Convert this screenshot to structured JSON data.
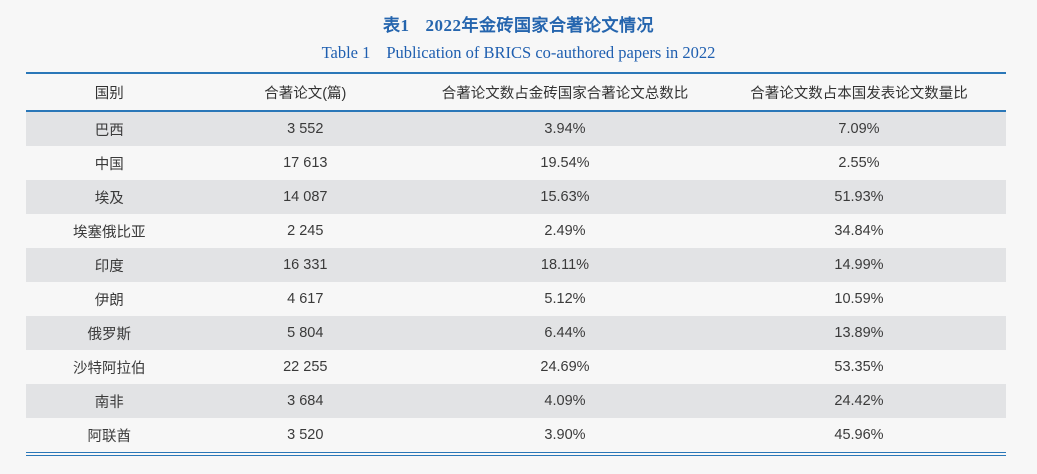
{
  "caption": {
    "zh_label": "表1",
    "zh_title": "2022年金砖国家合著论文情况",
    "en_label": "Table 1",
    "en_title": "Publication of BRICS co-authored papers in 2022",
    "text_color": "#2265b0"
  },
  "table": {
    "accent_line_color": "#2a77b8",
    "stripe_color": "#e2e3e5",
    "columns": [
      "国别",
      "合著论文(篇)",
      "合著论文数占金砖国家合著论文总数比",
      "合著论文数占本国发表论文数量比"
    ],
    "rows": [
      [
        "巴西",
        "3 552",
        "3.94%",
        "7.09%"
      ],
      [
        "中国",
        "17 613",
        "19.54%",
        "2.55%"
      ],
      [
        "埃及",
        "14 087",
        "15.63%",
        "51.93%"
      ],
      [
        "埃塞俄比亚",
        "2 245",
        "2.49%",
        "34.84%"
      ],
      [
        "印度",
        "16 331",
        "18.11%",
        "14.99%"
      ],
      [
        "伊朗",
        "4 617",
        "5.12%",
        "10.59%"
      ],
      [
        "俄罗斯",
        "5 804",
        "6.44%",
        "13.89%"
      ],
      [
        "沙特阿拉伯",
        "22 255",
        "24.69%",
        "53.35%"
      ],
      [
        "南非",
        "3 684",
        "4.09%",
        "24.42%"
      ],
      [
        "阿联酋",
        "3 520",
        "3.90%",
        "45.96%"
      ]
    ]
  }
}
